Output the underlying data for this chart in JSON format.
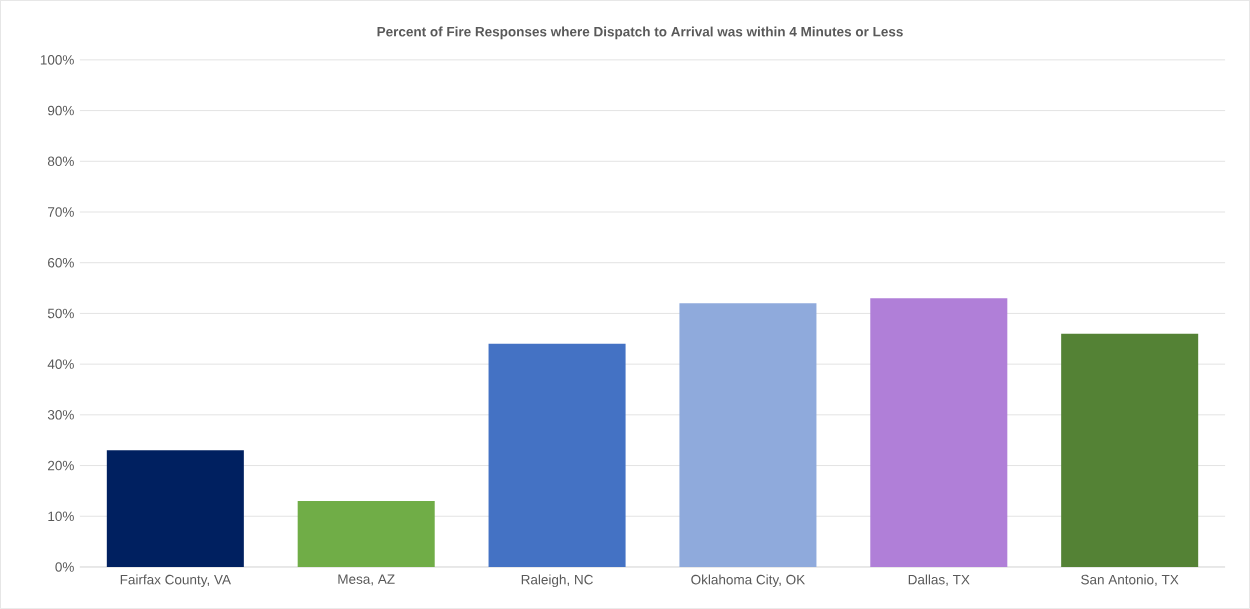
{
  "chart_data": {
    "type": "bar",
    "title": "Percent of Fire Responses where Dispatch to Arrival was within 4 Minutes or Less",
    "categories": [
      "Fairfax County, VA",
      "Mesa, AZ",
      "Raleigh, NC",
      "Oklahoma City, OK",
      "Dallas, TX",
      "San Antonio, TX"
    ],
    "values": [
      23,
      13,
      44,
      52,
      53,
      46
    ],
    "colors": [
      "#002060",
      "#70ad47",
      "#4472c4",
      "#8faadc",
      "#b07fd8",
      "#548235"
    ],
    "ylim": [
      0,
      100
    ],
    "yticks": [
      {
        "value": 0,
        "label": "0%"
      },
      {
        "value": 10,
        "label": "10%"
      },
      {
        "value": 20,
        "label": "20%"
      },
      {
        "value": 30,
        "label": "30%"
      },
      {
        "value": 40,
        "label": "40%"
      },
      {
        "value": 50,
        "label": "50%"
      },
      {
        "value": 60,
        "label": "60%"
      },
      {
        "value": 70,
        "label": "70%"
      },
      {
        "value": 80,
        "label": "80%"
      },
      {
        "value": 90,
        "label": "90%"
      },
      {
        "value": 100,
        "label": "100%"
      }
    ],
    "grid": "y"
  }
}
